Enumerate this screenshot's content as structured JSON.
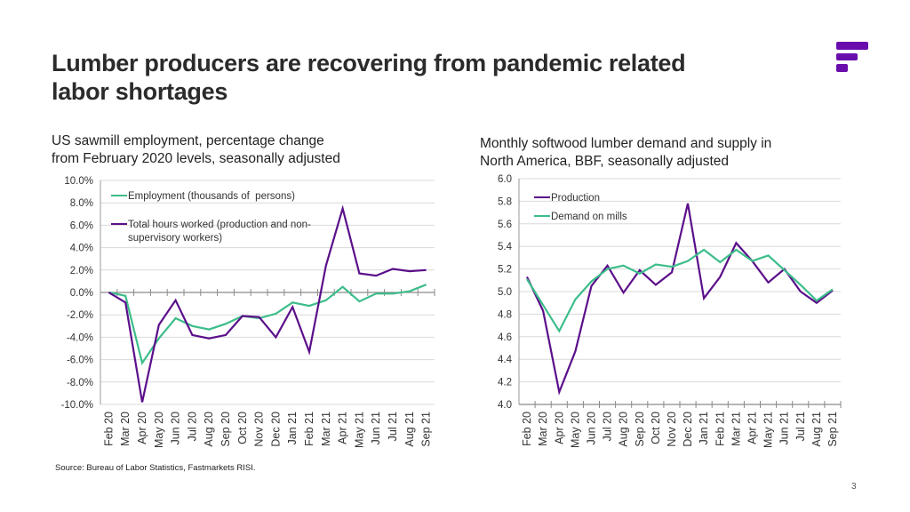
{
  "page": {
    "title": "Lumber producers are recovering from pandemic related labor shortages",
    "title_line1": "Lumber producers are recovering from pandemic related",
    "title_line2": "labor shortages",
    "logo_icon": "brand-f-bars-icon",
    "brand_color": "#6a0dad",
    "source": "Source: Bureau of Labor Statistics, Fastmarkets RISI.",
    "page_number": "3"
  },
  "chart_data": [
    {
      "type": "line",
      "title": "US sawmill employment, percentage change from February 2020 levels, seasonally adjusted",
      "title_line1": "US sawmill employment, percentage change",
      "title_line2": "from February 2020 levels, seasonally adjusted",
      "xlabel": "",
      "ylabel": "",
      "ylim": [
        -10,
        10
      ],
      "yticks": [
        10,
        8,
        6,
        4,
        2,
        0,
        -2,
        -4,
        -6,
        -8,
        -10
      ],
      "ytick_labels": [
        "10.0%",
        "8.0%",
        "6.0%",
        "4.0%",
        "2.0%",
        "0.0%",
        "-2.0%",
        "-4.0%",
        "-6.0%",
        "-8.0%",
        "-10.0%"
      ],
      "grid": true,
      "legend_position": "top-left",
      "categories": [
        "Feb 20",
        "Mar 20",
        "Apr 20",
        "May 20",
        "Jun 20",
        "Jul 20",
        "Aug 20",
        "Sep 20",
        "Oct 20",
        "Nov 20",
        "Dec 20",
        "Jan 21",
        "Feb 21",
        "Mar 21",
        "Apr 21",
        "May 21",
        "Jun 21",
        "Jul 21",
        "Aug 21",
        "Sep 21"
      ],
      "series": [
        {
          "name": "Employment (thousands of  persons)",
          "color": "#3dbd8a",
          "values": [
            0,
            -0.3,
            -6.3,
            -4.1,
            -2.3,
            -3.0,
            -3.3,
            -2.8,
            -2.1,
            -2.3,
            -1.9,
            -0.9,
            -1.2,
            -0.7,
            0.5,
            -0.8,
            -0.1,
            -0.1,
            0.1,
            0.7
          ]
        },
        {
          "name": "Total hours worked (production and non-supervisory workers)",
          "legend_line1": "Total hours worked (production and non-",
          "legend_line2": "supervisory workers)",
          "color": "#5b0f8a",
          "values": [
            0,
            -0.9,
            -9.8,
            -2.9,
            -0.7,
            -3.8,
            -4.1,
            -3.8,
            -2.1,
            -2.2,
            -4.0,
            -1.3,
            -5.3,
            2.4,
            7.5,
            1.7,
            1.5,
            2.1,
            1.9,
            2.0
          ]
        }
      ]
    },
    {
      "type": "line",
      "title": "Monthly softwood lumber demand and supply in North America, BBF, seasonally adjusted",
      "title_line1": "Monthly softwood lumber demand and supply in",
      "title_line2": "North America, BBF, seasonally adjusted",
      "xlabel": "",
      "ylabel": "",
      "ylim": [
        4.0,
        6.0
      ],
      "yticks": [
        6.0,
        5.8,
        5.6,
        5.4,
        5.2,
        5.0,
        4.8,
        4.6,
        4.4,
        4.2,
        4.0
      ],
      "ytick_labels": [
        "6.0",
        "5.8",
        "5.6",
        "5.4",
        "5.2",
        "5.0",
        "4.8",
        "4.6",
        "4.4",
        "4.2",
        "4.0"
      ],
      "grid": true,
      "legend_position": "top-left",
      "categories": [
        "Feb 20",
        "Mar 20",
        "Apr 20",
        "May 20",
        "Jun 20",
        "Jul 20",
        "Aug 20",
        "Sep 20",
        "Oct 20",
        "Nov 20",
        "Dec 20",
        "Jan 21",
        "Feb 21",
        "Mar 21",
        "Apr 21",
        "May 21",
        "Jun 21",
        "Jul 21",
        "Aug 21",
        "Sep 21"
      ],
      "series": [
        {
          "name": "Production",
          "color": "#5b0f8a",
          "values": [
            5.13,
            4.83,
            4.11,
            4.47,
            5.05,
            5.23,
            4.99,
            5.19,
            5.06,
            5.17,
            5.78,
            4.94,
            5.13,
            5.43,
            5.27,
            5.08,
            5.2,
            5.0,
            4.9,
            5.01
          ]
        },
        {
          "name": "Demand on mills",
          "color": "#3dbd8a",
          "values": [
            5.11,
            4.88,
            4.65,
            4.93,
            5.09,
            5.2,
            5.23,
            5.16,
            5.24,
            5.22,
            5.27,
            5.37,
            5.26,
            5.37,
            5.27,
            5.32,
            5.19,
            5.06,
            4.92,
            5.02
          ]
        }
      ]
    }
  ]
}
